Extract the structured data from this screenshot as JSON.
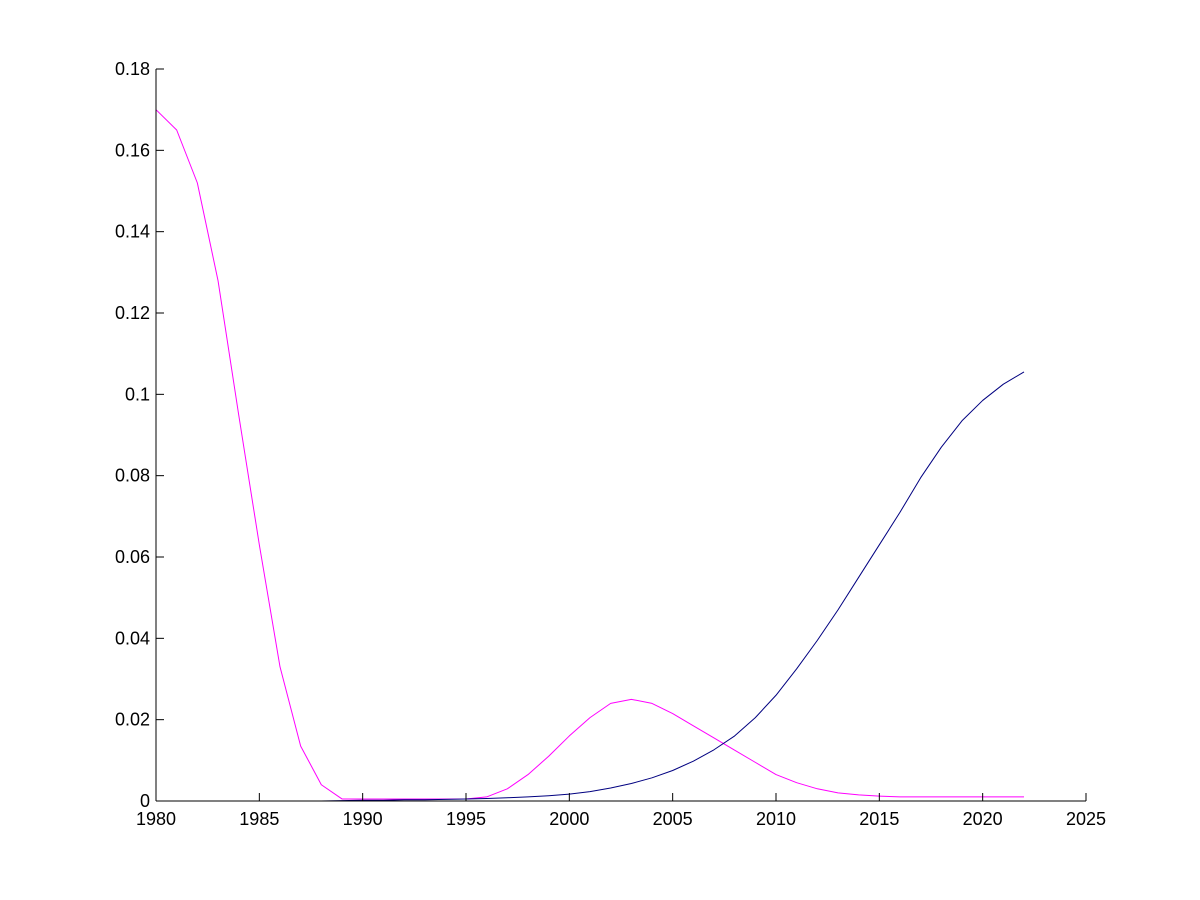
{
  "colors": {
    "background": "#ffffff",
    "axis": "#000000",
    "series_1": "#ff00ff",
    "series_2": "#000080"
  },
  "chart_data": {
    "type": "line",
    "title": "",
    "xlabel": "",
    "ylabel": "",
    "xlim": [
      1980,
      2025
    ],
    "ylim": [
      0,
      0.18
    ],
    "x_ticks": [
      1980,
      1985,
      1990,
      1995,
      2000,
      2005,
      2010,
      2015,
      2020,
      2025
    ],
    "x_tick_labels": [
      "1980",
      "1985",
      "1990",
      "1995",
      "2000",
      "2005",
      "2010",
      "2015",
      "2020",
      "2025"
    ],
    "y_ticks": [
      0,
      0.02,
      0.04,
      0.06,
      0.08,
      0.1,
      0.12,
      0.14,
      0.16,
      0.18
    ],
    "y_tick_labels": [
      "0",
      "0.02",
      "0.04",
      "0.06",
      "0.08",
      "0.1",
      "0.12",
      "0.14",
      "0.16",
      "0.18"
    ],
    "grid": false,
    "legend": "none",
    "x": [
      1980,
      1981,
      1982,
      1983,
      1984,
      1985,
      1986,
      1987,
      1988,
      1989,
      1990,
      1991,
      1992,
      1993,
      1994,
      1995,
      1996,
      1997,
      1998,
      1999,
      2000,
      2001,
      2002,
      2003,
      2004,
      2005,
      2006,
      2007,
      2008,
      2009,
      2010,
      2011,
      2012,
      2013,
      2014,
      2015,
      2016,
      2017,
      2018,
      2019,
      2020,
      2021,
      2022
    ],
    "series": [
      {
        "color": "#ff00ff",
        "values": [
          0.17,
          0.165,
          0.152,
          0.128,
          0.095,
          0.063,
          0.033,
          0.0135,
          0.004,
          0.0005,
          0.0005,
          0.0005,
          0.0005,
          0.0005,
          0.0005,
          0.0005,
          0.001,
          0.003,
          0.0065,
          0.011,
          0.016,
          0.0205,
          0.024,
          0.025,
          0.024,
          0.0215,
          0.0185,
          0.0155,
          0.0125,
          0.0095,
          0.0065,
          0.0045,
          0.003,
          0.002,
          0.0015,
          0.0012,
          0.001,
          0.001,
          0.001,
          0.001,
          0.001,
          0.001,
          0.001
        ]
      },
      {
        "color": "#000080",
        "values": [
          0,
          0,
          0,
          0,
          0,
          0,
          0,
          0,
          0,
          0.0001,
          0.0002,
          0.0002,
          0.0003,
          0.0003,
          0.0004,
          0.0005,
          0.0006,
          0.0008,
          0.001,
          0.0013,
          0.0017,
          0.0023,
          0.0032,
          0.0043,
          0.0057,
          0.0075,
          0.0098,
          0.0126,
          0.016,
          0.0205,
          0.026,
          0.0325,
          0.0395,
          0.047,
          0.055,
          0.063,
          0.071,
          0.0795,
          0.087,
          0.0935,
          0.0985,
          0.1025,
          0.1055
        ]
      }
    ]
  }
}
